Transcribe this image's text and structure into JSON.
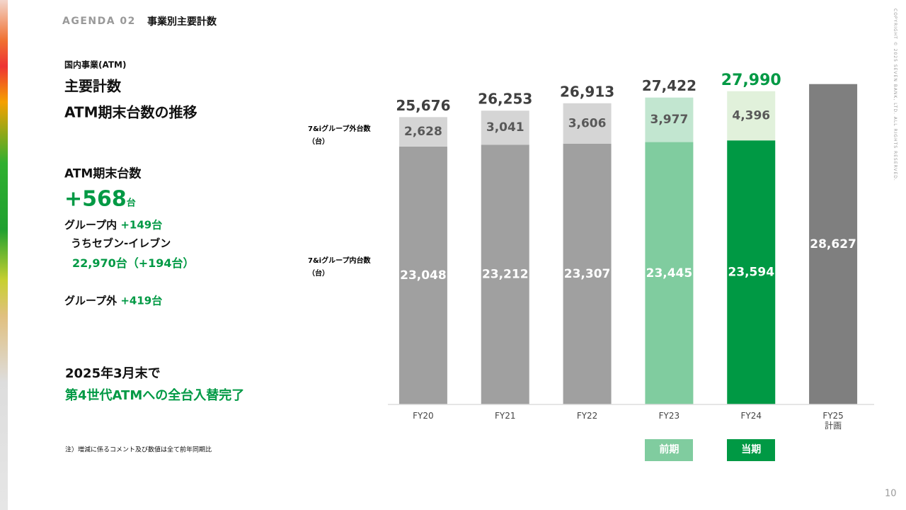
{
  "header": {
    "agenda": "AGENDA 02",
    "title": "事業別主要計数"
  },
  "left": {
    "section": "国内事業(ATM)",
    "heading1": "主要計数",
    "heading2": "ATM期末台数の推移",
    "kpi_label": "ATM期末台数",
    "kpi_value": "+568",
    "kpi_unit": "台",
    "group_in_label": "グループ内",
    "group_in_value": "+149台",
    "seven_label": "うちセブン-イレブン",
    "seven_value": "22,970台（+194台）",
    "group_out_label": "グループ外",
    "group_out_value": "+419台",
    "completion_line1": "2025年3月末で",
    "completion_line2": "第4世代ATMへの全台入替完了"
  },
  "note": "注）増減に係るコメント及び数値は全て前年同期比",
  "copyright": "COPYRIGHT © 2025 SEVEN BANK, LTD. ALL RIGHTS RESERVED.",
  "page_number": "10",
  "chart_data": {
    "type": "stacked_bar",
    "categories": [
      "FY20",
      "FY21",
      "FY22",
      "FY23",
      "FY24",
      "FY25\n計画"
    ],
    "series": [
      {
        "name": "7&iグループ内台数\n（台）",
        "values": [
          23048,
          23212,
          23307,
          23445,
          23594,
          null
        ],
        "value_labels": [
          "23,048",
          "23,212",
          "23,307",
          "23,445",
          "23,594",
          null
        ],
        "colors": [
          "#a0a0a0",
          "#a0a0a0",
          "#a0a0a0",
          "#80cc9f",
          "#009944",
          null
        ],
        "label_color": "#ffffff"
      },
      {
        "name": "7&iグループ外台数\n（台）",
        "values": [
          2628,
          3041,
          3606,
          3977,
          4396,
          null
        ],
        "value_labels": [
          "2,628",
          "3,041",
          "3,606",
          "3,977",
          "4,396",
          null
        ],
        "colors": [
          "#d5d5d5",
          "#d5d5d5",
          "#d5d5d5",
          "#c2e6d0",
          "#e1f1db",
          null
        ],
        "label_color": "#595959"
      }
    ],
    "totals": {
      "values": [
        25676,
        26253,
        26913,
        27422,
        27990,
        28627
      ],
      "value_labels": [
        "25,676",
        "26,253",
        "26,913",
        "27,422",
        "27,990",
        "28,627"
      ],
      "label_colors": [
        "#404040",
        "#404040",
        "#404040",
        "#404040",
        "#009944",
        "#ffffff"
      ],
      "color": "#7f7f7f"
    },
    "period_labels": [
      "前期",
      "当期"
    ],
    "ylim": [
      0,
      30000
    ]
  }
}
